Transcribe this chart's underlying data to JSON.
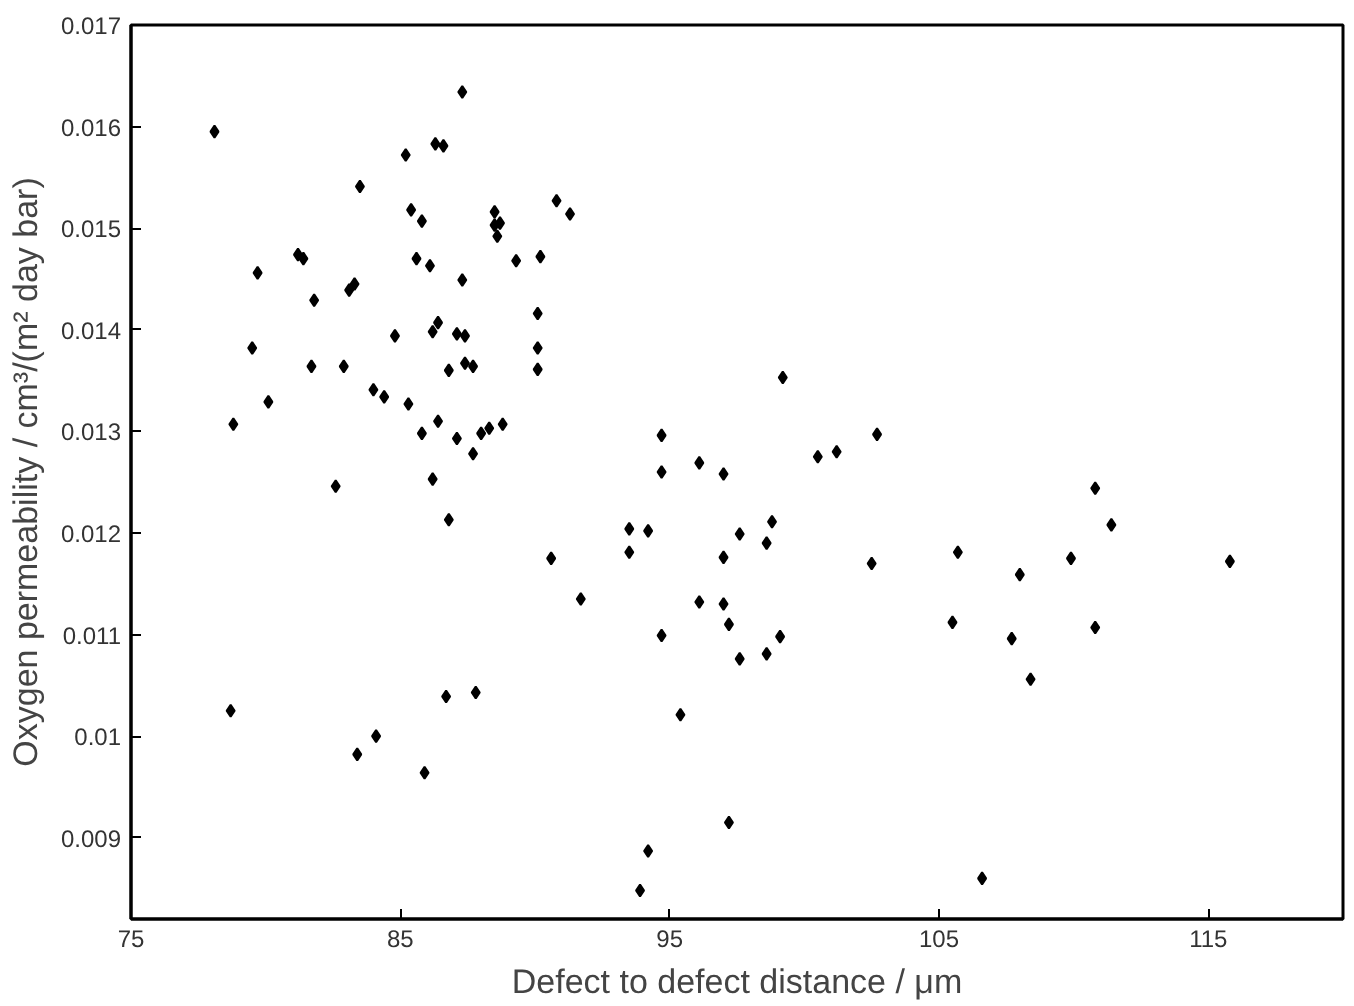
{
  "chart_data": {
    "type": "scatter",
    "xlabel": "Defect to defect distance / μm",
    "ylabel": "Oxygen permeability / cm³/(m² day bar)",
    "xlim": [
      75,
      120
    ],
    "xticks": [
      75,
      85,
      95,
      105,
      115
    ],
    "ylim": [
      0.0082,
      0.017
    ],
    "yticks": [
      0.009,
      0.01,
      0.011,
      0.012,
      0.013,
      0.014,
      0.015,
      0.016,
      0.017
    ],
    "marker": "diamond",
    "series": [
      {
        "color": "#000000",
        "x": [
          78.1,
          78.8,
          79.7,
          79.5,
          80.1,
          81.2,
          81.4,
          81.8,
          81.7,
          82.9,
          83.5,
          83.1,
          83.3,
          84.0,
          84.4,
          84.8,
          85.3,
          85.2,
          85.4,
          85.8,
          85.6,
          86.1,
          85.8,
          86.2,
          86.4,
          86.3,
          86.6,
          87.3,
          86.4,
          86.8,
          87.1,
          87.3,
          87.1,
          87.4,
          87.4,
          87.7,
          87.7,
          88.0,
          88.3,
          88.8,
          88.5,
          88.5,
          88.7,
          88.6,
          89.3,
          90.2,
          90.1,
          90.1,
          90.1,
          90.8,
          91.3,
          94.7,
          96.1,
          86.2,
          82.6,
          86.8,
          78.7,
          83.4,
          84.1,
          85.9,
          86.7,
          87.8,
          90.6,
          91.7,
          93.5,
          93.5,
          94.2,
          94.7,
          94.7,
          95.4,
          96.1,
          94.2,
          93.9,
          99.2,
          97.0,
          100.5,
          101.2,
          102.7,
          110.8,
          111.4,
          97.6,
          98.8,
          98.6,
          97.0,
          102.5,
          105.7,
          108.0,
          109.9,
          115.8,
          97.0,
          97.2,
          99.1,
          97.6,
          98.6,
          105.5,
          110.8,
          107.7,
          108.4,
          97.2,
          106.6
        ],
        "values": [
          0.01595,
          0.01307,
          0.01456,
          0.01382,
          0.01329,
          0.01474,
          0.0147,
          0.01429,
          0.01364,
          0.01364,
          0.01541,
          0.01439,
          0.01445,
          0.01341,
          0.01334,
          0.01394,
          0.01327,
          0.01572,
          0.01518,
          0.01507,
          0.0147,
          0.01463,
          0.01298,
          0.01398,
          0.01407,
          0.01583,
          0.01581,
          0.01634,
          0.0131,
          0.0136,
          0.01293,
          0.01449,
          0.01396,
          0.01394,
          0.01367,
          0.01364,
          0.01278,
          0.01298,
          0.01303,
          0.01307,
          0.01516,
          0.01503,
          0.01505,
          0.01492,
          0.01468,
          0.01472,
          0.01416,
          0.01382,
          0.01361,
          0.01527,
          0.01514,
          0.01296,
          0.01269,
          0.01253,
          0.01246,
          0.01213,
          0.01025,
          0.00982,
          0.01,
          0.00964,
          0.01039,
          0.01043,
          0.01175,
          0.01135,
          0.01204,
          0.01181,
          0.01202,
          0.0126,
          0.01099,
          0.01021,
          0.01132,
          0.00887,
          0.00848,
          0.01353,
          0.01258,
          0.01275,
          0.0128,
          0.01297,
          0.01244,
          0.01208,
          0.01199,
          0.01211,
          0.0119,
          0.01176,
          0.0117,
          0.01181,
          0.01159,
          0.01175,
          0.01172,
          0.0113,
          0.0111,
          0.01098,
          0.01076,
          0.01081,
          0.01112,
          0.01107,
          0.01096,
          0.01056,
          0.00915,
          0.0086
        ]
      }
    ]
  }
}
